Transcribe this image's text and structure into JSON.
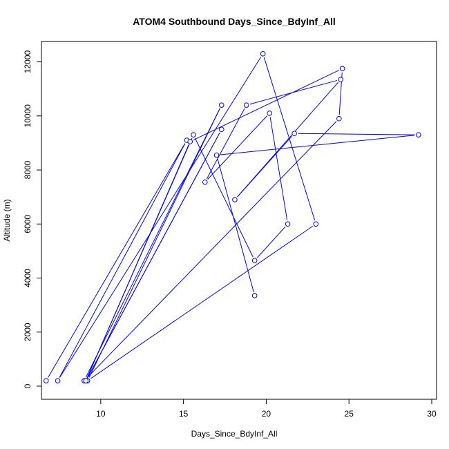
{
  "chart_data": {
    "type": "line",
    "title": "ATOM4 Southbound Days_Since_BdyInf_All",
    "xlabel": "Days_Since_BdyInf_All",
    "ylabel": "Altitude (m)",
    "xlim": [
      6.5,
      30
    ],
    "ylim": [
      0,
      12500
    ],
    "xticks": [
      10,
      15,
      20,
      25,
      30
    ],
    "yticks": [
      0,
      2000,
      4000,
      6000,
      8000,
      10000,
      12000
    ],
    "grid": false,
    "legend": "none",
    "color": "#0000ff",
    "series": [
      {
        "points": [
          [
            6.7,
            200
          ],
          [
            15.2,
            9100
          ],
          [
            7.4,
            200
          ],
          [
            19.8,
            12300
          ],
          [
            23.0,
            6000
          ],
          [
            9.2,
            200
          ],
          [
            17.3,
            10400
          ],
          [
            9.0,
            200
          ],
          [
            24.4,
            9900
          ],
          [
            24.6,
            11750
          ],
          [
            15.4,
            9050
          ],
          [
            9.1,
            200
          ],
          [
            17.3,
            9500
          ],
          [
            9.1,
            200
          ],
          [
            15.6,
            9300
          ],
          [
            19.3,
            4650
          ],
          [
            21.3,
            6000
          ],
          [
            20.2,
            10100
          ],
          [
            16.3,
            7550
          ],
          [
            18.8,
            10400
          ],
          [
            24.5,
            11350
          ],
          [
            18.1,
            6900
          ],
          [
            21.7,
            9350
          ],
          [
            29.2,
            9300
          ],
          [
            17.0,
            8550
          ],
          [
            19.3,
            3350
          ]
        ]
      }
    ]
  }
}
